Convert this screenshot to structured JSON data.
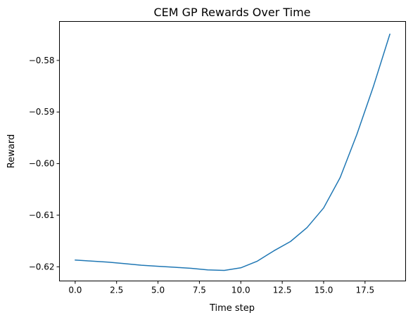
{
  "chart_data": {
    "type": "line",
    "title": "CEM GP Rewards Over Time",
    "xlabel": "Time step",
    "ylabel": "Reward",
    "xlim": [
      -0.95,
      19.95
    ],
    "ylim": [
      -0.62275,
      -0.57245
    ],
    "x_ticks": [
      0.0,
      2.5,
      5.0,
      7.5,
      10.0,
      12.5,
      15.0,
      17.5
    ],
    "x_tick_labels": [
      "0.0",
      "2.5",
      "5.0",
      "7.5",
      "10.0",
      "12.5",
      "15.0",
      "17.5"
    ],
    "y_ticks": [
      -0.62,
      -0.61,
      -0.6,
      -0.59,
      -0.58
    ],
    "y_tick_labels": [
      "−0.62",
      "−0.61",
      "−0.60",
      "−0.59",
      "−0.58"
    ],
    "grid": false,
    "series": [
      {
        "color": "#1f77b4",
        "x": [
          0,
          1,
          2,
          3,
          4,
          5,
          6,
          7,
          8,
          9,
          10,
          11,
          12,
          13,
          14,
          15,
          16,
          17,
          18,
          19
        ],
        "y": [
          -0.6187,
          -0.6189,
          -0.6191,
          -0.6194,
          -0.6197,
          -0.6199,
          -0.6201,
          -0.6203,
          -0.6206,
          -0.6207,
          -0.6202,
          -0.6189,
          -0.6169,
          -0.6151,
          -0.6124,
          -0.6086,
          -0.6027,
          -0.5944,
          -0.5851,
          -0.5749
        ]
      }
    ]
  }
}
